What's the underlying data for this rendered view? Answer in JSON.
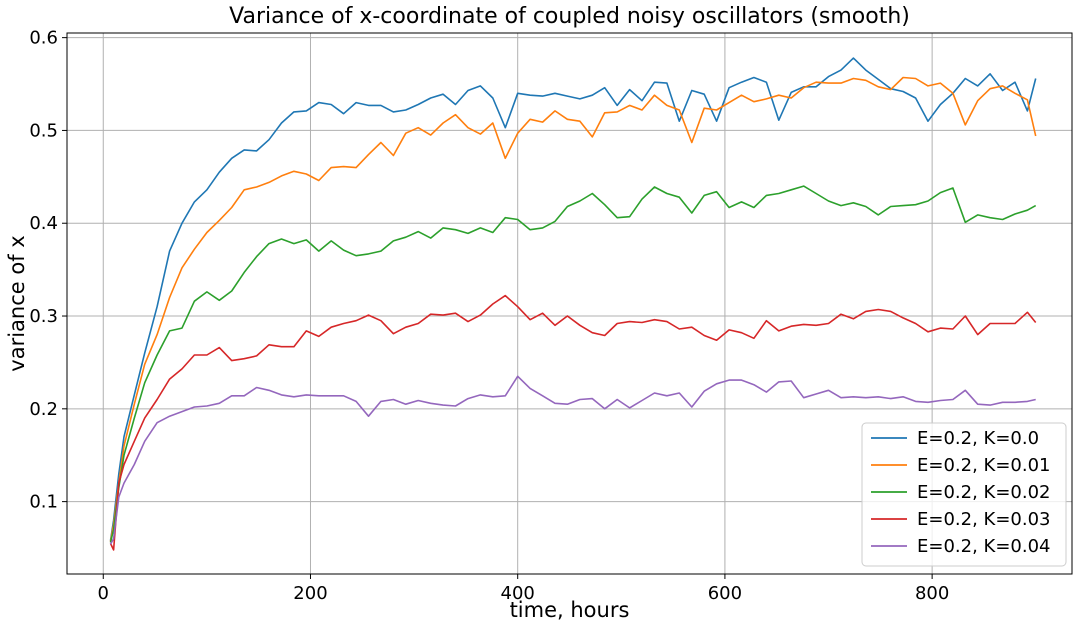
{
  "chart_data": {
    "type": "line",
    "title": "Variance of x-coordinate of coupled noisy oscillators (smooth)",
    "xlabel": "time, hours",
    "ylabel": "variance of x",
    "xlim": [
      -35,
      935
    ],
    "ylim": [
      0.022,
      0.605
    ],
    "xticks": [
      0,
      200,
      400,
      600,
      800
    ],
    "xtick_labels": [
      "0",
      "200",
      "400",
      "600",
      "800"
    ],
    "yticks": [
      0.1,
      0.2,
      0.3,
      0.4,
      0.5,
      0.6
    ],
    "ytick_labels": [
      "0.1",
      "0.2",
      "0.3",
      "0.4",
      "0.5",
      "0.6"
    ],
    "grid": true,
    "legend_position": "bottom-right",
    "x": [
      7,
      10,
      15,
      20,
      30,
      40,
      52,
      64,
      76,
      88,
      100,
      112,
      124,
      136,
      148,
      160,
      172,
      184,
      196,
      208,
      220,
      232,
      244,
      256,
      268,
      280,
      292,
      304,
      316,
      328,
      340,
      352,
      364,
      376,
      388,
      400,
      412,
      424,
      436,
      448,
      460,
      472,
      484,
      496,
      508,
      520,
      532,
      544,
      556,
      568,
      580,
      592,
      604,
      616,
      628,
      640,
      652,
      664,
      676,
      688,
      700,
      712,
      724,
      736,
      748,
      760,
      772,
      784,
      796,
      808,
      820,
      832,
      844,
      856,
      868,
      880,
      892,
      900
    ],
    "series": [
      {
        "name": "E=0.2, K=0.0",
        "color": "#1f77b4",
        "values": [
          0.058,
          0.08,
          0.13,
          0.17,
          0.215,
          0.26,
          0.31,
          0.37,
          0.4,
          0.423,
          0.436,
          0.455,
          0.47,
          0.479,
          0.478,
          0.49,
          0.508,
          0.52,
          0.521,
          0.53,
          0.528,
          0.518,
          0.53,
          0.527,
          0.527,
          0.52,
          0.522,
          0.528,
          0.535,
          0.539,
          0.528,
          0.543,
          0.548,
          0.535,
          0.503,
          0.54,
          0.538,
          0.537,
          0.54,
          0.537,
          0.534,
          0.538,
          0.546,
          0.527,
          0.544,
          0.532,
          0.552,
          0.551,
          0.51,
          0.543,
          0.539,
          0.51,
          0.546,
          0.552,
          0.557,
          0.552,
          0.511,
          0.541,
          0.547,
          0.547,
          0.558,
          0.565,
          0.578,
          0.565,
          0.555,
          0.545,
          0.542,
          0.535,
          0.51,
          0.528,
          0.54,
          0.556,
          0.548,
          0.561,
          0.543,
          0.552,
          0.521,
          0.556
        ]
      },
      {
        "name": "E=0.2, K=0.01",
        "color": "#ff7f0e",
        "values": [
          0.057,
          0.075,
          0.12,
          0.16,
          0.205,
          0.248,
          0.28,
          0.32,
          0.352,
          0.372,
          0.39,
          0.403,
          0.417,
          0.436,
          0.439,
          0.444,
          0.451,
          0.456,
          0.453,
          0.446,
          0.46,
          0.461,
          0.46,
          0.474,
          0.487,
          0.473,
          0.497,
          0.503,
          0.495,
          0.508,
          0.517,
          0.503,
          0.496,
          0.508,
          0.47,
          0.497,
          0.512,
          0.509,
          0.521,
          0.512,
          0.51,
          0.493,
          0.519,
          0.52,
          0.527,
          0.522,
          0.538,
          0.527,
          0.522,
          0.487,
          0.524,
          0.522,
          0.53,
          0.538,
          0.531,
          0.534,
          0.538,
          0.535,
          0.546,
          0.552,
          0.551,
          0.551,
          0.556,
          0.554,
          0.547,
          0.544,
          0.557,
          0.556,
          0.548,
          0.551,
          0.54,
          0.506,
          0.532,
          0.545,
          0.548,
          0.54,
          0.533,
          0.494
        ]
      },
      {
        "name": "E=0.2, K=0.02",
        "color": "#2ca02c",
        "values": [
          0.056,
          0.07,
          0.115,
          0.15,
          0.19,
          0.228,
          0.258,
          0.284,
          0.287,
          0.316,
          0.326,
          0.317,
          0.327,
          0.347,
          0.364,
          0.378,
          0.383,
          0.378,
          0.382,
          0.37,
          0.381,
          0.371,
          0.365,
          0.367,
          0.37,
          0.381,
          0.385,
          0.391,
          0.384,
          0.395,
          0.393,
          0.389,
          0.395,
          0.39,
          0.406,
          0.404,
          0.393,
          0.395,
          0.402,
          0.418,
          0.424,
          0.432,
          0.42,
          0.406,
          0.407,
          0.426,
          0.439,
          0.432,
          0.428,
          0.411,
          0.43,
          0.434,
          0.417,
          0.423,
          0.417,
          0.43,
          0.432,
          0.436,
          0.44,
          0.432,
          0.424,
          0.419,
          0.422,
          0.418,
          0.409,
          0.418,
          0.419,
          0.42,
          0.424,
          0.433,
          0.438,
          0.401,
          0.409,
          0.406,
          0.404,
          0.41,
          0.414,
          0.419
        ]
      },
      {
        "name": "E=0.2, K=0.03",
        "color": "#d62728",
        "values": [
          0.055,
          0.048,
          0.12,
          0.14,
          0.165,
          0.19,
          0.21,
          0.232,
          0.243,
          0.258,
          0.258,
          0.266,
          0.252,
          0.254,
          0.257,
          0.269,
          0.267,
          0.267,
          0.284,
          0.278,
          0.288,
          0.292,
          0.295,
          0.301,
          0.295,
          0.281,
          0.288,
          0.292,
          0.302,
          0.301,
          0.303,
          0.294,
          0.301,
          0.313,
          0.322,
          0.31,
          0.296,
          0.303,
          0.29,
          0.3,
          0.29,
          0.282,
          0.279,
          0.292,
          0.294,
          0.293,
          0.296,
          0.294,
          0.286,
          0.288,
          0.279,
          0.274,
          0.285,
          0.282,
          0.276,
          0.295,
          0.284,
          0.289,
          0.291,
          0.29,
          0.292,
          0.302,
          0.297,
          0.305,
          0.307,
          0.305,
          0.298,
          0.292,
          0.283,
          0.287,
          0.286,
          0.3,
          0.28,
          0.292,
          0.292,
          0.292,
          0.304,
          0.293
        ]
      },
      {
        "name": "E=0.2, K=0.04",
        "color": "#9467bd",
        "values": [
          0.054,
          0.06,
          0.105,
          0.12,
          0.14,
          0.165,
          0.185,
          0.192,
          0.197,
          0.202,
          0.203,
          0.206,
          0.214,
          0.214,
          0.223,
          0.22,
          0.215,
          0.213,
          0.215,
          0.214,
          0.214,
          0.214,
          0.208,
          0.192,
          0.208,
          0.21,
          0.205,
          0.209,
          0.206,
          0.204,
          0.203,
          0.211,
          0.215,
          0.213,
          0.214,
          0.235,
          0.222,
          0.214,
          0.206,
          0.205,
          0.21,
          0.211,
          0.2,
          0.21,
          0.201,
          0.209,
          0.217,
          0.214,
          0.217,
          0.202,
          0.219,
          0.227,
          0.231,
          0.231,
          0.226,
          0.218,
          0.229,
          0.23,
          0.212,
          0.216,
          0.22,
          0.212,
          0.213,
          0.212,
          0.213,
          0.211,
          0.213,
          0.208,
          0.207,
          0.209,
          0.21,
          0.22,
          0.205,
          0.204,
          0.207,
          0.207,
          0.208,
          0.21
        ]
      }
    ]
  }
}
